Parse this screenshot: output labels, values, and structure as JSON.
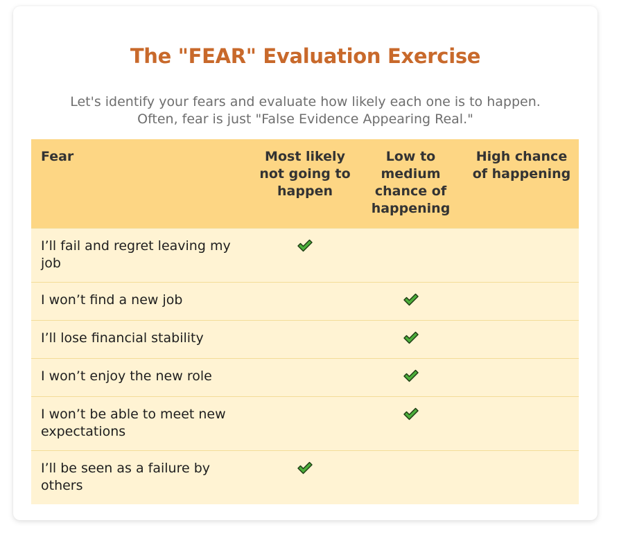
{
  "title": "The \"FEAR\" Evaluation Exercise",
  "subtitle_lines": [
    "Let's identify your fears and evaluate how likely each one is to happen.",
    "Often, fear is just \"False Evidence Appearing Real.\""
  ],
  "table": {
    "headers": [
      "Fear",
      "Most likely not going to happen",
      "Low to medium chance of happening",
      "High chance of happening"
    ],
    "rows": [
      {
        "fear": "I’ll fail and regret leaving my job",
        "rating": "Most likely not going to happen"
      },
      {
        "fear": "I won’t find a new job",
        "rating": "Low to medium chance of happening"
      },
      {
        "fear": "I’ll lose financial stability",
        "rating": "Low to medium chance of happening"
      },
      {
        "fear": "I won’t enjoy the new role",
        "rating": "Low to medium chance of happening"
      },
      {
        "fear": "I won’t be able to meet new expectations",
        "rating": "Low to medium chance of happening"
      },
      {
        "fear": "I’ll be seen as a failure by others",
        "rating": "Most likely not going to happen"
      }
    ]
  },
  "colors": {
    "title": "#c8692b",
    "header_bg": "#fdd684",
    "row_bg": "#fff3d3",
    "check_fill": "#4caf3b"
  },
  "icons": {
    "check": "check-icon"
  }
}
